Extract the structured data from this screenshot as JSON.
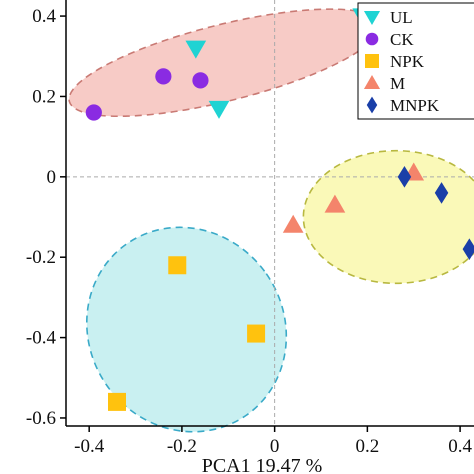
{
  "chart_data": {
    "type": "scatter",
    "xlabel": "PCA1 19.47 %",
    "xlim": [
      -0.45,
      0.43
    ],
    "ylim": [
      -0.62,
      0.44
    ],
    "xticks": [
      -0.4,
      -0.2,
      0,
      0.2,
      0.4
    ],
    "xtick_labels": [
      "-0.4",
      "-0.2",
      "0",
      "0.2",
      "0.4"
    ],
    "yticks": [
      -0.6,
      -0.4,
      -0.2,
      0,
      0.2,
      0.4
    ],
    "ytick_labels": [
      "-0.6",
      "-0.4",
      "-0.2",
      "0",
      "0.2",
      "0.4"
    ],
    "grid": false,
    "reference_lines": [
      0,
      0
    ],
    "legend_position": "top-right",
    "series": [
      {
        "name": "UL",
        "marker": "triangle-down",
        "color": "#1fd3d3",
        "points": [
          [
            -0.17,
            0.32
          ],
          [
            -0.12,
            0.17
          ],
          [
            0.19,
            0.4
          ]
        ]
      },
      {
        "name": "CK",
        "marker": "circle",
        "color": "#8a2be2",
        "points": [
          [
            -0.39,
            0.16
          ],
          [
            -0.24,
            0.25
          ],
          [
            -0.16,
            0.24
          ]
        ]
      },
      {
        "name": "NPK",
        "marker": "square",
        "color": "#ffc20e",
        "points": [
          [
            -0.34,
            -0.56
          ],
          [
            -0.21,
            -0.22
          ],
          [
            -0.04,
            -0.39
          ]
        ]
      },
      {
        "name": "M",
        "marker": "triangle-up",
        "color": "#f4846b",
        "points": [
          [
            0.04,
            -0.12
          ],
          [
            0.13,
            -0.07
          ],
          [
            0.3,
            0.01
          ]
        ]
      },
      {
        "name": "MNPK",
        "marker": "diamond",
        "color": "#1a3fa8",
        "points": [
          [
            0.28,
            0.0
          ],
          [
            0.36,
            -0.04
          ],
          [
            0.42,
            -0.18
          ]
        ]
      }
    ],
    "ellipses": [
      {
        "group": "CK_UL",
        "fill": "#f6c5c0",
        "stroke": "#c97a74",
        "cx": -0.108,
        "cy": 0.284,
        "rx": 0.345,
        "ry": 0.095,
        "angle": -14
      },
      {
        "group": "NPK",
        "fill": "#c3eef0",
        "stroke": "#3aaac8",
        "cx": -0.19,
        "cy": -0.38,
        "rx": 0.21,
        "ry": 0.26,
        "angle": -35
      },
      {
        "group": "M_MNPK",
        "fill": "#f9f8b0",
        "stroke": "#b8b840",
        "cx": 0.262,
        "cy": -0.1,
        "rx": 0.2,
        "ry": 0.165,
        "angle": 0
      }
    ]
  }
}
